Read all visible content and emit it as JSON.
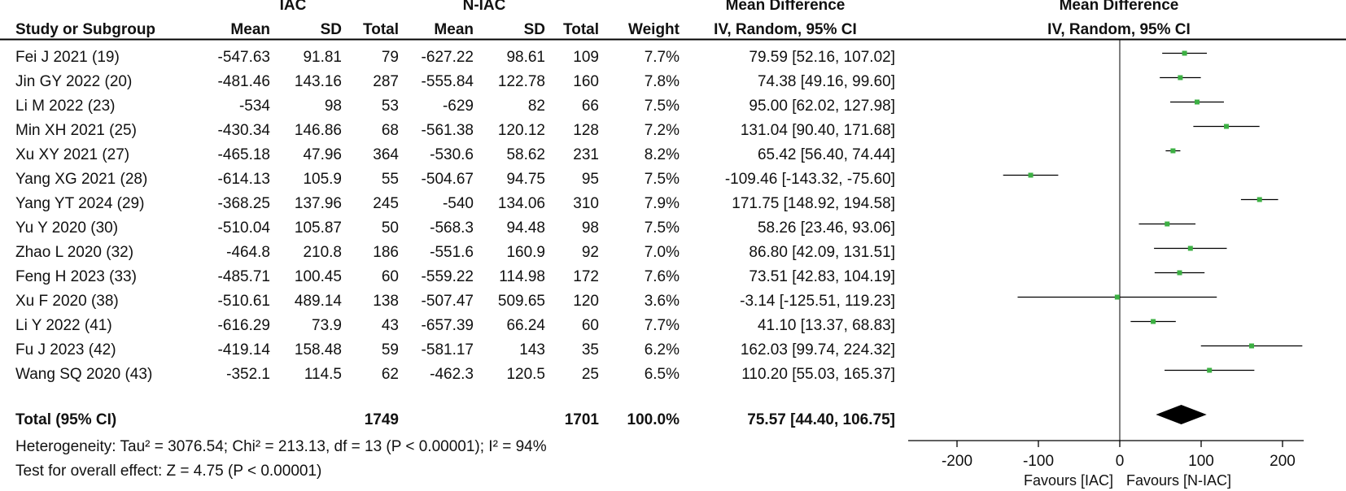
{
  "header": {
    "group_iac": "IAC",
    "group_niac": "N-IAC",
    "mean_diff_title": "Mean Difference",
    "study_col": "Study or Subgroup",
    "mean": "Mean",
    "sd": "SD",
    "total": "Total",
    "weight": "Weight",
    "method": "IV, Random, 95% CI",
    "plot_title": "Mean Difference",
    "plot_method": "IV, Random, 95% CI"
  },
  "studies": [
    {
      "name": "Fei J 2021 (19)",
      "iac_mean": "-547.63",
      "iac_sd": "91.81",
      "iac_total": "79",
      "niac_mean": "-627.22",
      "niac_sd": "98.61",
      "niac_total": "109",
      "weight": "7.7%",
      "ci_text": "79.59 [52.16, 107.02]"
    },
    {
      "name": "Jin GY 2022 (20)",
      "iac_mean": "-481.46",
      "iac_sd": "143.16",
      "iac_total": "287",
      "niac_mean": "-555.84",
      "niac_sd": "122.78",
      "niac_total": "160",
      "weight": "7.8%",
      "ci_text": "74.38 [49.16, 99.60]"
    },
    {
      "name": "Li M 2022 (23)",
      "iac_mean": "-534",
      "iac_sd": "98",
      "iac_total": "53",
      "niac_mean": "-629",
      "niac_sd": "82",
      "niac_total": "66",
      "weight": "7.5%",
      "ci_text": "95.00 [62.02, 127.98]"
    },
    {
      "name": "Min XH 2021 (25)",
      "iac_mean": "-430.34",
      "iac_sd": "146.86",
      "iac_total": "68",
      "niac_mean": "-561.38",
      "niac_sd": "120.12",
      "niac_total": "128",
      "weight": "7.2%",
      "ci_text": "131.04 [90.40, 171.68]"
    },
    {
      "name": "Xu XY 2021 (27)",
      "iac_mean": "-465.18",
      "iac_sd": "47.96",
      "iac_total": "364",
      "niac_mean": "-530.6",
      "niac_sd": "58.62",
      "niac_total": "231",
      "weight": "8.2%",
      "ci_text": "65.42 [56.40, 74.44]"
    },
    {
      "name": "Yang XG 2021 (28)",
      "iac_mean": "-614.13",
      "iac_sd": "105.9",
      "iac_total": "55",
      "niac_mean": "-504.67",
      "niac_sd": "94.75",
      "niac_total": "95",
      "weight": "7.5%",
      "ci_text": "-109.46 [-143.32, -75.60]"
    },
    {
      "name": "Yang YT 2024 (29)",
      "iac_mean": "-368.25",
      "iac_sd": "137.96",
      "iac_total": "245",
      "niac_mean": "-540",
      "niac_sd": "134.06",
      "niac_total": "310",
      "weight": "7.9%",
      "ci_text": "171.75 [148.92, 194.58]"
    },
    {
      "name": "Yu Y 2020 (30)",
      "iac_mean": "-510.04",
      "iac_sd": "105.87",
      "iac_total": "50",
      "niac_mean": "-568.3",
      "niac_sd": "94.48",
      "niac_total": "98",
      "weight": "7.5%",
      "ci_text": "58.26 [23.46, 93.06]"
    },
    {
      "name": "Zhao L 2020 (32)",
      "iac_mean": "-464.8",
      "iac_sd": "210.8",
      "iac_total": "186",
      "niac_mean": "-551.6",
      "niac_sd": "160.9",
      "niac_total": "92",
      "weight": "7.0%",
      "ci_text": "86.80 [42.09, 131.51]"
    },
    {
      "name": "Feng H 2023 (33)",
      "iac_mean": "-485.71",
      "iac_sd": "100.45",
      "iac_total": "60",
      "niac_mean": "-559.22",
      "niac_sd": "114.98",
      "niac_total": "172",
      "weight": "7.6%",
      "ci_text": "73.51 [42.83, 104.19]"
    },
    {
      "name": "Xu F 2020 (38)",
      "iac_mean": "-510.61",
      "iac_sd": "489.14",
      "iac_total": "138",
      "niac_mean": "-507.47",
      "niac_sd": "509.65",
      "niac_total": "120",
      "weight": "3.6%",
      "ci_text": "-3.14 [-125.51, 119.23]"
    },
    {
      "name": "Li Y 2022 (41)",
      "iac_mean": "-616.29",
      "iac_sd": "73.9",
      "iac_total": "43",
      "niac_mean": "-657.39",
      "niac_sd": "66.24",
      "niac_total": "60",
      "weight": "7.7%",
      "ci_text": "41.10 [13.37, 68.83]"
    },
    {
      "name": "Fu J 2023 (42)",
      "iac_mean": "-419.14",
      "iac_sd": "158.48",
      "iac_total": "59",
      "niac_mean": "-581.17",
      "niac_sd": "143",
      "niac_total": "35",
      "weight": "6.2%",
      "ci_text": "162.03 [99.74, 224.32]"
    },
    {
      "name": "Wang SQ 2020 (43)",
      "iac_mean": "-352.1",
      "iac_sd": "114.5",
      "iac_total": "62",
      "niac_mean": "-462.3",
      "niac_sd": "120.5",
      "niac_total": "25",
      "weight": "6.5%",
      "ci_text": "110.20 [55.03, 165.37]"
    }
  ],
  "total": {
    "label": "Total (95% CI)",
    "iac_total": "1749",
    "niac_total": "1701",
    "weight": "100.0%",
    "ci_text": "75.57 [44.40, 106.75]"
  },
  "heterogeneity": "Heterogeneity: Tau² = 3076.54; Chi² = 213.13, df = 13 (P < 0.00001); I² = 94%",
  "overall_effect": "Test for overall effect: Z = 4.75 (P < 0.00001)",
  "axis": {
    "ticks": [
      "-200",
      "-100",
      "0",
      "100",
      "200"
    ],
    "favours_left": "Favours [IAC]",
    "favours_right": "Favours [N-IAC]"
  },
  "colors": {
    "point": "#3cb043",
    "line": "#000000",
    "diamond": "#000000"
  },
  "chart_data": {
    "type": "forest",
    "xlim": [
      -250,
      250
    ],
    "xticks": [
      -200,
      -100,
      0,
      100,
      200
    ],
    "null_line": 0,
    "points": [
      {
        "study": "Fei J 2021 (19)",
        "md": 79.59,
        "lo": 52.16,
        "hi": 107.02
      },
      {
        "study": "Jin GY 2022 (20)",
        "md": 74.38,
        "lo": 49.16,
        "hi": 99.6
      },
      {
        "study": "Li M 2022 (23)",
        "md": 95.0,
        "lo": 62.02,
        "hi": 127.98
      },
      {
        "study": "Min XH 2021 (25)",
        "md": 131.04,
        "lo": 90.4,
        "hi": 171.68
      },
      {
        "study": "Xu XY 2021 (27)",
        "md": 65.42,
        "lo": 56.4,
        "hi": 74.44
      },
      {
        "study": "Yang XG 2021 (28)",
        "md": -109.46,
        "lo": -143.32,
        "hi": -75.6
      },
      {
        "study": "Yang YT 2024 (29)",
        "md": 171.75,
        "lo": 148.92,
        "hi": 194.58
      },
      {
        "study": "Yu Y 2020 (30)",
        "md": 58.26,
        "lo": 23.46,
        "hi": 93.06
      },
      {
        "study": "Zhao L 2020 (32)",
        "md": 86.8,
        "lo": 42.09,
        "hi": 131.51
      },
      {
        "study": "Feng H 2023 (33)",
        "md": 73.51,
        "lo": 42.83,
        "hi": 104.19
      },
      {
        "study": "Xu F 2020 (38)",
        "md": -3.14,
        "lo": -125.51,
        "hi": 119.23
      },
      {
        "study": "Li Y 2022 (41)",
        "md": 41.1,
        "lo": 13.37,
        "hi": 68.83
      },
      {
        "study": "Fu J 2023 (42)",
        "md": 162.03,
        "lo": 99.74,
        "hi": 224.32
      },
      {
        "study": "Wang SQ 2020 (43)",
        "md": 110.2,
        "lo": 55.03,
        "hi": 165.37
      }
    ],
    "pooled": {
      "md": 75.57,
      "lo": 44.4,
      "hi": 106.75
    }
  }
}
